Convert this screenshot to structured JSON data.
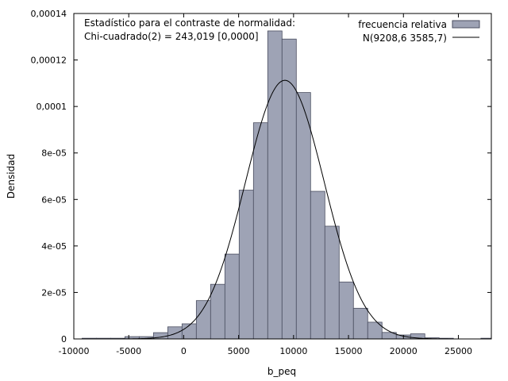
{
  "chart_data": {
    "type": "bar",
    "xlabel": "b_peq",
    "ylabel": "Densidad",
    "xlim": [
      -10000,
      28000
    ],
    "ylim": [
      0,
      0.00014
    ],
    "x_ticks": [
      -10000,
      -5000,
      0,
      5000,
      10000,
      15000,
      20000,
      25000
    ],
    "x_tick_labels": [
      "-10000",
      "-5000",
      "0",
      "5000",
      "10000",
      "15000",
      "20000",
      "25000"
    ],
    "y_ticks": [
      0,
      2e-05,
      4e-05,
      6e-05,
      8e-05,
      0.0001,
      0.00012,
      0.00014
    ],
    "y_tick_labels": [
      "0",
      "2e-05",
      "4e-05",
      "6e-05",
      "8e-05",
      "0,0001",
      "0,00012",
      "0,00014"
    ],
    "annotation": {
      "line1": "Estadístico para el contraste de normalidad:",
      "line2": "Chi-cuadrado(2) = 243,019 [0,0000]"
    },
    "legend": {
      "position": "top-right",
      "histogram": "frecuencia relativa",
      "curve": "N(9208,6 3585,7)"
    },
    "colors": {
      "bar_fill": "#9ea3b5",
      "bar_stroke": "#4a4e60",
      "curve": "#000000"
    },
    "histogram": {
      "bin_width": 1300,
      "bins": [
        {
          "x": -8600,
          "y": 3e-07
        },
        {
          "x": -7300,
          "y": 3e-07
        },
        {
          "x": -6000,
          "y": 3e-07
        },
        {
          "x": -4700,
          "y": 1e-06
        },
        {
          "x": -3400,
          "y": 1e-06
        },
        {
          "x": -2100,
          "y": 2.7e-06
        },
        {
          "x": -800,
          "y": 5.2e-06
        },
        {
          "x": 500,
          "y": 6.5e-06
        },
        {
          "x": 1800,
          "y": 1.65e-05
        },
        {
          "x": 3100,
          "y": 2.35e-05
        },
        {
          "x": 4400,
          "y": 3.65e-05
        },
        {
          "x": 5700,
          "y": 6.4e-05
        },
        {
          "x": 7000,
          "y": 9.3e-05
        },
        {
          "x": 8300,
          "y": 0.0001325
        },
        {
          "x": 9600,
          "y": 0.000129
        },
        {
          "x": 10900,
          "y": 0.000106
        },
        {
          "x": 12200,
          "y": 6.35e-05
        },
        {
          "x": 13500,
          "y": 4.85e-05
        },
        {
          "x": 14800,
          "y": 2.45e-05
        },
        {
          "x": 16100,
          "y": 1.32e-05
        },
        {
          "x": 17400,
          "y": 7.2e-06
        },
        {
          "x": 18700,
          "y": 2.8e-06
        },
        {
          "x": 20000,
          "y": 1.7e-06
        },
        {
          "x": 21300,
          "y": 2.2e-06
        },
        {
          "x": 22600,
          "y": 5e-07
        },
        {
          "x": 23900,
          "y": 3e-07
        },
        {
          "x": 27700,
          "y": 3e-07
        }
      ]
    },
    "normal_curve": {
      "mean": 9208.6,
      "sd": 3585.7
    }
  }
}
